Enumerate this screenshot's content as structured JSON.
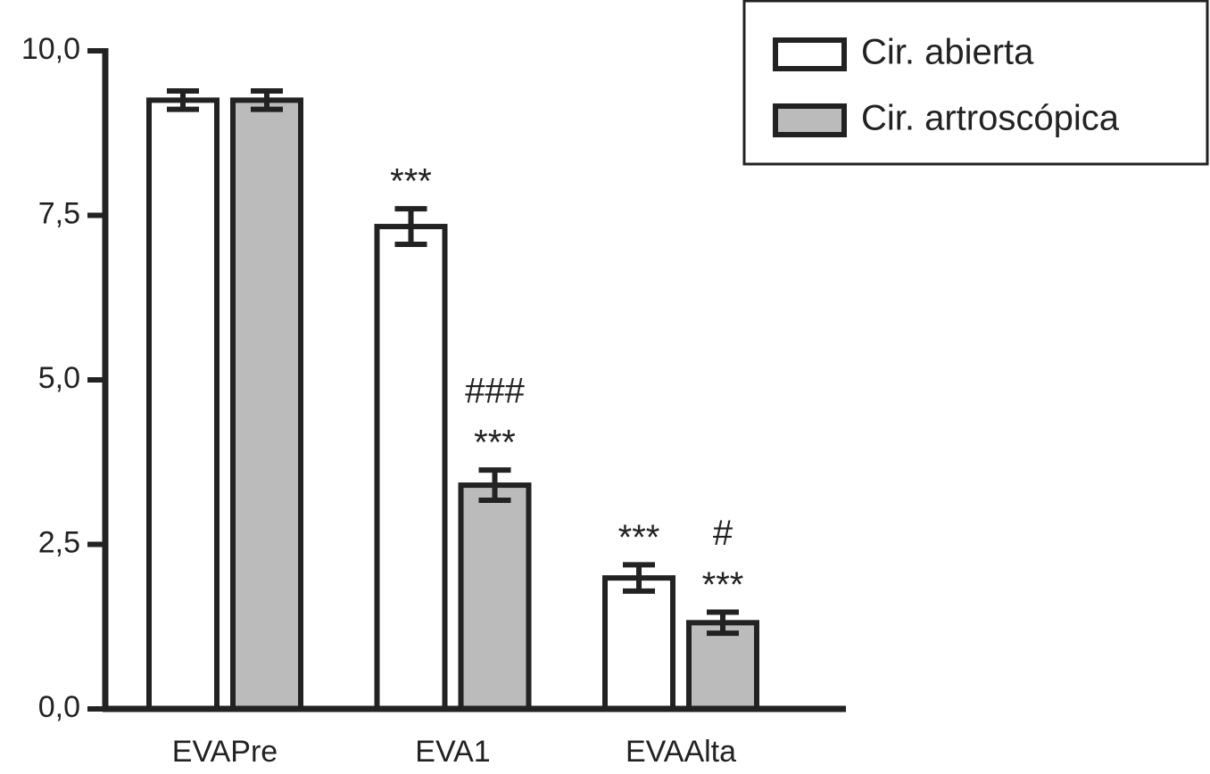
{
  "chart_data": {
    "type": "bar",
    "categories": [
      "EVAPre",
      "EVA1",
      "EVAAlta"
    ],
    "series": [
      {
        "name": "Cir. abierta",
        "color": "#ffffff",
        "values": [
          9.25,
          7.33,
          1.99
        ],
        "errors": [
          0.14,
          0.27,
          0.2
        ],
        "annotations": [
          [],
          [
            "***"
          ],
          [
            "***"
          ]
        ]
      },
      {
        "name": "Cir. artroscópica",
        "color": "#bbbbbb",
        "values": [
          9.25,
          3.4,
          1.31
        ],
        "errors": [
          0.14,
          0.23,
          0.16
        ],
        "annotations": [
          [],
          [
            "###",
            "***"
          ],
          [
            "#",
            "***"
          ]
        ]
      }
    ],
    "ylim": [
      0,
      10
    ],
    "yticks": [
      {
        "value": 0,
        "label": "0,0"
      },
      {
        "value": 2.5,
        "label": "2,5"
      },
      {
        "value": 5,
        "label": "5,0"
      },
      {
        "value": 7.5,
        "label": "7,5"
      },
      {
        "value": 10,
        "label": "10,0"
      }
    ],
    "legend": "top-right"
  }
}
